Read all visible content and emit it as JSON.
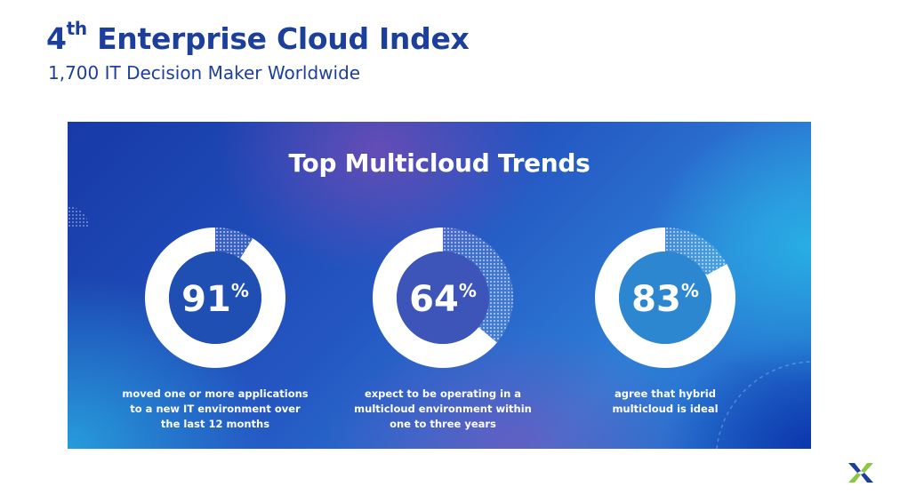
{
  "header": {
    "title_number": "4",
    "title_superscript": "th",
    "title_rest": " Enterprise Cloud Index",
    "subtitle": "1,700 IT Decision Maker Worldwide"
  },
  "banner": {
    "title": "Top Multicloud Trends",
    "stats": [
      {
        "value": "91",
        "percent_sign": "%",
        "fraction": 0.91,
        "caption_lines": [
          "moved one or more applications",
          "to a new IT environment over",
          "the last 12 months"
        ]
      },
      {
        "value": "64",
        "percent_sign": "%",
        "fraction": 0.64,
        "caption_lines": [
          "expect to be operating in a",
          "multicloud environment within",
          "one to three years"
        ]
      },
      {
        "value": "83",
        "percent_sign": "%",
        "fraction": 0.83,
        "caption_lines": [
          "agree that hybrid",
          "multicloud is ideal"
        ]
      }
    ]
  },
  "colors": {
    "brand_blue": "#1b3f9b",
    "ring_white": "#ffffff",
    "logo_green": "#8dc63f",
    "logo_blue": "#1b3f9b"
  },
  "icons": {
    "logo": "nutanix-x-logo"
  }
}
